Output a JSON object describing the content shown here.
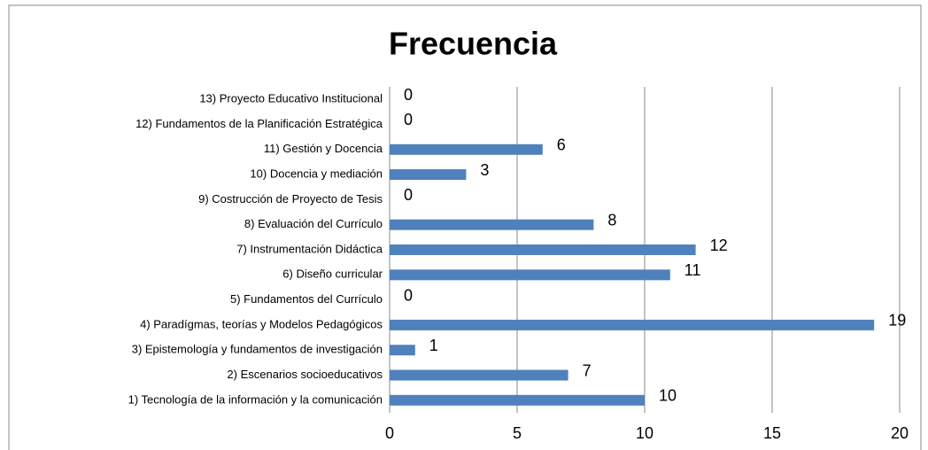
{
  "chart_data": {
    "type": "barh",
    "title": "Frecuencia",
    "categories": [
      "1) Tecnología de la información y la comunicación",
      "2) Escenarios socioeducativos",
      "3) Epistemología y fundamentos de investigación",
      "4) Paradígmas, teorías y Modelos Pedagógicos",
      "5) Fundamentos del Currículo",
      "6) Diseño curricular",
      "7) Instrumentación Didáctica",
      "8) Evaluación del Currículo",
      "9) Costrucción de Proyecto de Tesis",
      "10) Docencia y mediación",
      "11) Gestión y Docencia",
      "12) Fundamentos de la Planificación Estratégica",
      "13) Proyecto Educativo Institucional"
    ],
    "values": [
      10,
      7,
      1,
      19,
      0,
      11,
      12,
      8,
      0,
      3,
      6,
      0,
      0
    ],
    "color": "#4f81bd",
    "xlim": [
      0,
      20
    ],
    "xticks": [
      0,
      5,
      10,
      15,
      20
    ],
    "grid": true
  }
}
